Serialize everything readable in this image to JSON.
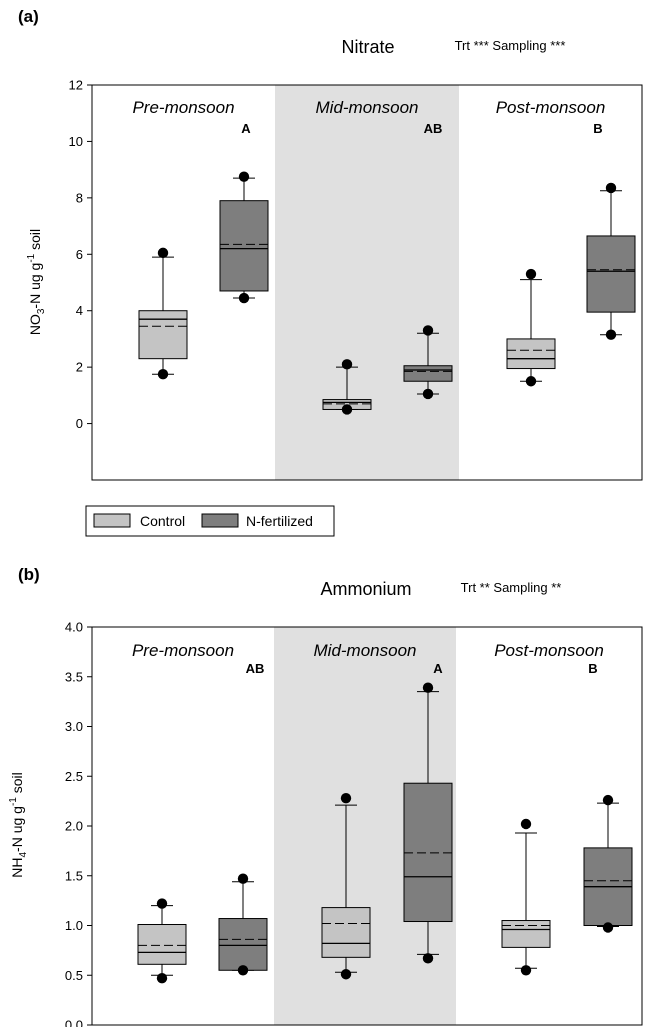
{
  "legend": {
    "items": [
      {
        "label": "Control",
        "color": "#c4c4c4"
      },
      {
        "label": "N-fertilized",
        "color": "#7e7e7e"
      }
    ]
  },
  "shade_color": "#e0e0e0",
  "chart_data": [
    {
      "type": "box",
      "panel_label": "(a)",
      "title": "Nitrate",
      "stats_text": "Trt *** Sampling ***",
      "ylabel_parts": {
        "base": "NO",
        "sub": "3",
        "mid": "-N ug g",
        "sup": "-1",
        "end": " soil"
      },
      "ylim": [
        -2,
        12
      ],
      "yticks": [
        0,
        2,
        4,
        6,
        8,
        10,
        12
      ],
      "tick_labels": [
        "0",
        "2",
        "4",
        "6",
        "8",
        "10",
        "12"
      ],
      "seasons": [
        {
          "name": "Pre-monsoon",
          "letter": "A",
          "shaded": false
        },
        {
          "name": "Mid-monsoon",
          "letter": "AB",
          "shaded": true
        },
        {
          "name": "Post-monsoon",
          "letter": "B",
          "shaded": false
        }
      ],
      "series": [
        {
          "name": "Control",
          "boxes": [
            {
              "q1": 2.3,
              "median": 3.7,
              "mean": 3.45,
              "q3": 4.0,
              "whisker_low": 1.75,
              "whisker_high": 5.9,
              "outliers": [
                1.75,
                6.05
              ]
            },
            {
              "q1": 0.5,
              "median": 0.75,
              "mean": 0.7,
              "q3": 0.85,
              "whisker_low": 0.5,
              "whisker_high": 2.0,
              "outliers": [
                0.5,
                2.1
              ]
            },
            {
              "q1": 1.95,
              "median": 2.3,
              "mean": 2.6,
              "q3": 3.0,
              "whisker_low": 1.5,
              "whisker_high": 5.1,
              "outliers": [
                1.5,
                5.3
              ]
            }
          ]
        },
        {
          "name": "N-fertilized",
          "boxes": [
            {
              "q1": 4.7,
              "median": 6.2,
              "mean": 6.35,
              "q3": 7.9,
              "whisker_low": 4.45,
              "whisker_high": 8.7,
              "outliers": [
                4.45,
                8.75
              ]
            },
            {
              "q1": 1.5,
              "median": 1.9,
              "mean": 1.85,
              "q3": 2.05,
              "whisker_low": 1.05,
              "whisker_high": 3.2,
              "outliers": [
                1.05,
                3.3
              ]
            },
            {
              "q1": 3.95,
              "median": 5.4,
              "mean": 5.45,
              "q3": 6.65,
              "whisker_low": 3.15,
              "whisker_high": 8.25,
              "outliers": [
                3.15,
                8.35
              ]
            }
          ]
        }
      ]
    },
    {
      "type": "box",
      "panel_label": "(b)",
      "title": "Ammonium",
      "stats_text": "Trt ** Sampling **",
      "ylabel_parts": {
        "base": "NH",
        "sub": "4",
        "mid": "-N ug g",
        "sup": "-1",
        "end": " soil"
      },
      "ylim": [
        0,
        4
      ],
      "yticks": [
        0,
        0.5,
        1,
        1.5,
        2,
        2.5,
        3,
        3.5,
        4
      ],
      "tick_labels": [
        "0.0",
        "0.5",
        "1.0",
        "1.5",
        "2.0",
        "2.5",
        "3.0",
        "3.5",
        "4.0"
      ],
      "seasons": [
        {
          "name": "Pre-monsoon",
          "letter": "AB",
          "shaded": false
        },
        {
          "name": "Mid-monsoon",
          "letter": "A",
          "shaded": true
        },
        {
          "name": "Post-monsoon",
          "letter": "B",
          "shaded": false
        }
      ],
      "series": [
        {
          "name": "Control",
          "boxes": [
            {
              "q1": 0.61,
              "median": 0.73,
              "mean": 0.8,
              "q3": 1.01,
              "whisker_low": 0.5,
              "whisker_high": 1.2,
              "outliers": [
                0.47,
                1.22
              ]
            },
            {
              "q1": 0.68,
              "median": 0.82,
              "mean": 1.02,
              "q3": 1.18,
              "whisker_low": 0.53,
              "whisker_high": 2.21,
              "outliers": [
                0.51,
                2.28
              ]
            },
            {
              "q1": 0.78,
              "median": 0.96,
              "mean": 1.0,
              "q3": 1.05,
              "whisker_low": 0.57,
              "whisker_high": 1.93,
              "outliers": [
                0.55,
                2.02
              ]
            }
          ]
        },
        {
          "name": "N-fertilized",
          "boxes": [
            {
              "q1": 0.55,
              "median": 0.8,
              "mean": 0.86,
              "q3": 1.07,
              "whisker_low": 0.55,
              "whisker_high": 1.44,
              "outliers": [
                0.55,
                1.47
              ]
            },
            {
              "q1": 1.04,
              "median": 1.49,
              "mean": 1.73,
              "q3": 2.43,
              "whisker_low": 0.71,
              "whisker_high": 3.35,
              "outliers": [
                0.67,
                3.39
              ]
            },
            {
              "q1": 1.0,
              "median": 1.39,
              "mean": 1.45,
              "q3": 1.78,
              "whisker_low": 0.99,
              "whisker_high": 2.23,
              "outliers": [
                0.98,
                2.26
              ]
            }
          ]
        }
      ]
    }
  ]
}
